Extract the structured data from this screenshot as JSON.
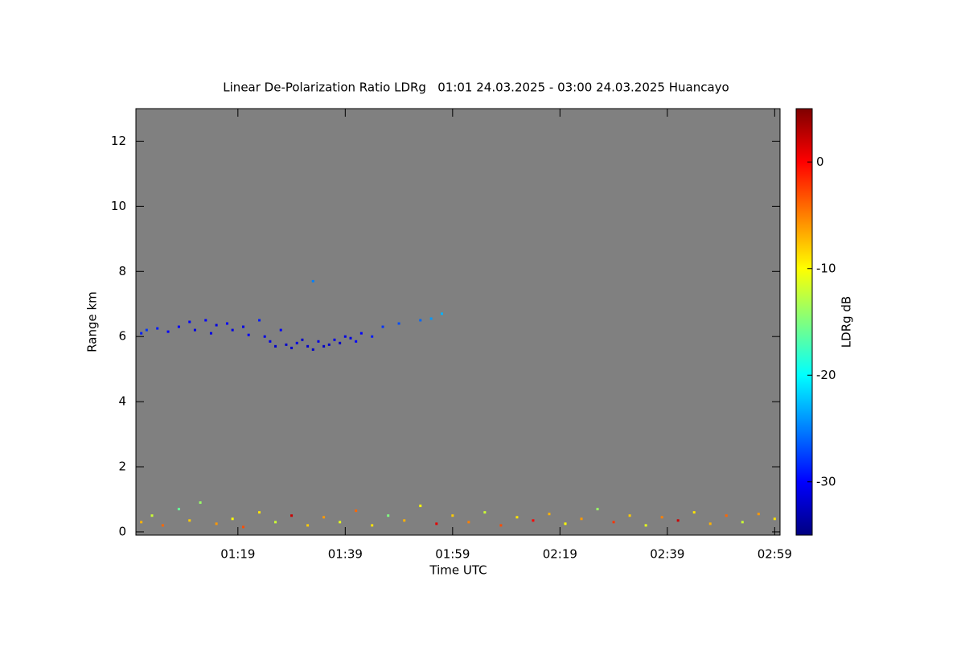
{
  "chart_data": {
    "type": "heatmap",
    "title": "Linear De-Polarization Ratio LDRg   01:01 24.03.2025 - 03:00 24.03.2025 Huancayo",
    "x_label": "Time UTC",
    "y_label": "Range km",
    "colorbar_label": "LDRg dB",
    "colormap": "jet",
    "background_color": "#808080",
    "xlim": [
      60,
      180
    ],
    "xticks": [
      {
        "value": 79,
        "label": "01:19"
      },
      {
        "value": 99,
        "label": "01:39"
      },
      {
        "value": 119,
        "label": "01:59"
      },
      {
        "value": 139,
        "label": "02:19"
      },
      {
        "value": 159,
        "label": "02:39"
      },
      {
        "value": 179,
        "label": "02:59"
      }
    ],
    "ylim": [
      -0.1,
      13
    ],
    "yticks": [
      0,
      2,
      4,
      6,
      8,
      10,
      12
    ],
    "zlim": [
      -35,
      5
    ],
    "zticks": [
      -30,
      -20,
      -10,
      0
    ],
    "x": [
      61,
      62,
      64,
      66,
      68,
      70,
      71,
      73,
      74,
      75,
      77,
      78,
      80,
      81,
      83,
      84,
      85,
      86,
      87,
      88,
      89,
      90,
      91,
      92,
      93,
      94,
      95,
      96,
      97,
      98,
      99,
      100,
      101,
      102,
      104,
      106,
      109,
      113,
      115,
      117,
      93,
      61,
      63,
      65,
      68,
      70,
      72,
      75,
      78,
      80,
      83,
      86,
      89,
      92,
      95,
      98,
      101,
      104,
      107,
      110,
      113,
      116,
      119,
      122,
      125,
      128,
      131,
      134,
      137,
      140,
      143,
      146,
      149,
      152,
      155,
      158,
      161,
      164,
      167,
      170,
      173,
      176,
      179
    ],
    "y": [
      6.1,
      6.2,
      6.25,
      6.15,
      6.3,
      6.45,
      6.2,
      6.5,
      6.1,
      6.35,
      6.4,
      6.2,
      6.3,
      6.05,
      6.5,
      6.0,
      5.85,
      5.7,
      6.2,
      5.75,
      5.65,
      5.8,
      5.9,
      5.7,
      5.6,
      5.85,
      5.7,
      5.75,
      5.9,
      5.8,
      6.0,
      5.95,
      5.85,
      6.1,
      6.0,
      6.3,
      6.4,
      6.5,
      6.55,
      6.7,
      7.7,
      0.3,
      0.5,
      0.2,
      0.7,
      0.35,
      0.9,
      0.25,
      0.4,
      0.15,
      0.6,
      0.3,
      0.5,
      0.2,
      0.45,
      0.3,
      0.65,
      0.2,
      0.5,
      0.35,
      0.8,
      0.25,
      0.5,
      0.3,
      0.6,
      0.2,
      0.45,
      0.35,
      0.55,
      0.25,
      0.4,
      0.7,
      0.3,
      0.5,
      0.2,
      0.45,
      0.35,
      0.6,
      0.25,
      0.5,
      0.3,
      0.55,
      0.4
    ],
    "z": [
      -29,
      -28,
      -29,
      -30,
      -30,
      -30,
      -31,
      -30,
      -31,
      -31,
      -30,
      -31,
      -31,
      -30,
      -29,
      -31,
      -31,
      -32,
      -30,
      -32,
      -32,
      -31,
      -32,
      -32,
      -32,
      -31,
      -32,
      -32,
      -31,
      -32,
      -31,
      -31,
      -30,
      -30,
      -29,
      -28,
      -27,
      -26,
      -24,
      -23,
      -25,
      -7,
      -12,
      -4,
      -16,
      -8,
      -14,
      -6,
      -10,
      -3,
      -9,
      -12,
      2,
      -8,
      -6,
      -11,
      -4,
      -9,
      -15,
      -7,
      -10,
      1,
      -8,
      -5,
      -12,
      -3,
      -9,
      0,
      -7,
      -10,
      -6,
      -14,
      -2,
      -8,
      -11,
      -5,
      2,
      -9,
      -7,
      -4,
      -12,
      -6,
      -9
    ]
  }
}
